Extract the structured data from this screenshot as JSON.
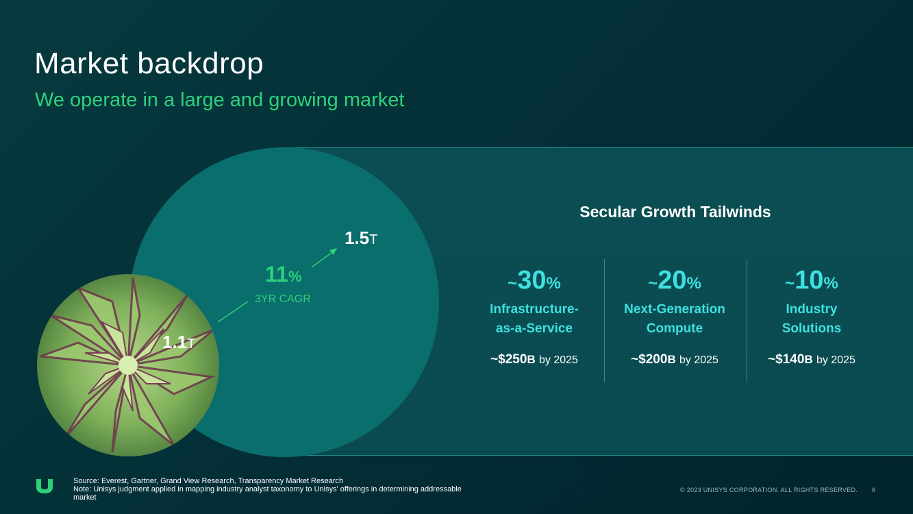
{
  "header": {
    "title": "Market backdrop",
    "subtitle": "We operate in a large and growing market"
  },
  "market": {
    "current": {
      "value": "1.1",
      "unit": "T"
    },
    "future": {
      "value": "1.5",
      "unit": "T"
    },
    "cagr": {
      "value": "11",
      "unit": "%",
      "label": "3YR CAGR"
    }
  },
  "tailwinds": {
    "title": "Secular Growth Tailwinds",
    "items": [
      {
        "prefix": "~",
        "pct": "30",
        "pct_unit": "%",
        "line1": "Infrastructure-",
        "line2": "as-a-Service",
        "amount": "~$250",
        "amount_unit": "B",
        "by": "by 2025"
      },
      {
        "prefix": "~",
        "pct": "20",
        "pct_unit": "%",
        "line1": "Next-Generation",
        "line2": "Compute",
        "amount": "~$200",
        "amount_unit": "B",
        "by": "by 2025"
      },
      {
        "prefix": "~",
        "pct": "10",
        "pct_unit": "%",
        "line1": "Industry",
        "line2": "Solutions",
        "amount": "~$140",
        "amount_unit": "B",
        "by": "by 2025"
      }
    ]
  },
  "footer": {
    "source": "Source: Everest, Gartner, Grand View Research, Transparency Market Research",
    "note": "Note: Unisys judgment applied in mapping industry analyst taxonomy to Unisys' offerings in determining addressable market",
    "copyright": "© 2023 UNISYS CORPORATION. ALL RIGHTS RESERVED.",
    "page": "6"
  },
  "colors": {
    "accent_green": "#2fd07a",
    "accent_cyan": "#3fe0e0",
    "circle": "#0a6e6d",
    "background": "#032d35"
  },
  "icons": {
    "logo": "unisys-u-logo-icon"
  }
}
